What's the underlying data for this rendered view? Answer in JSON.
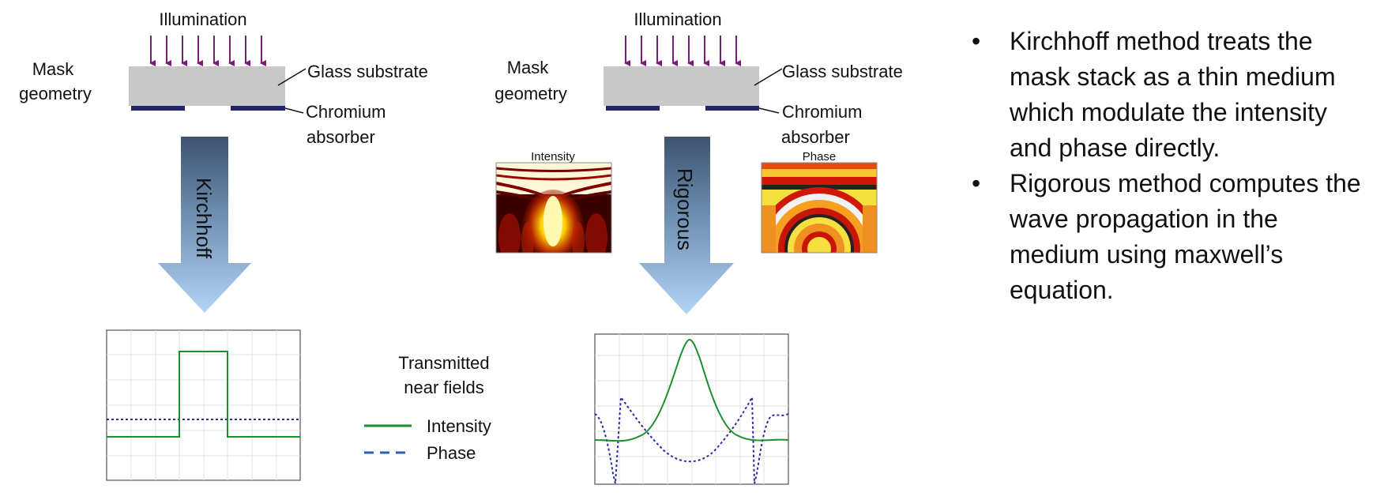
{
  "left_panel": {
    "illumination": "Illumination",
    "mask_label_1": "Mask",
    "mask_label_2": "geometry",
    "glass": "Glass substrate",
    "chromium_1": "Chromium",
    "chromium_2": "absorber",
    "arrow_label": "Kirchhoff"
  },
  "right_panel": {
    "illumination": "Illumination",
    "mask_label_1": "Mask",
    "mask_label_2": "geometry",
    "glass": "Glass substrate",
    "chromium_1": "Chromium",
    "chromium_2": "absorber",
    "arrow_label": "Rigorous",
    "intensity_map_label": "Intensity",
    "phase_map_label": "Phase"
  },
  "legend": {
    "title_1": "Transmitted",
    "title_2": "near fields",
    "intensity": "Intensity",
    "phase": "Phase",
    "intensity_color": "#1e8f2e",
    "phase_color": "#2a2a9a"
  },
  "colors": {
    "illumination_arrows": "#7a1a7a",
    "glass": "#c8c8c8",
    "chromium": "#23236e",
    "arrow_top": "#3d536f",
    "arrow_bottom": "#a9cdf0"
  },
  "bullets": [
    "Kirchhoff method treats the mask stack as a thin medium which modulate the intensity and phase directly.",
    "Rigorous method computes the wave propagation in the medium using maxwell’s equation."
  ],
  "bullet_symbol": "•"
}
